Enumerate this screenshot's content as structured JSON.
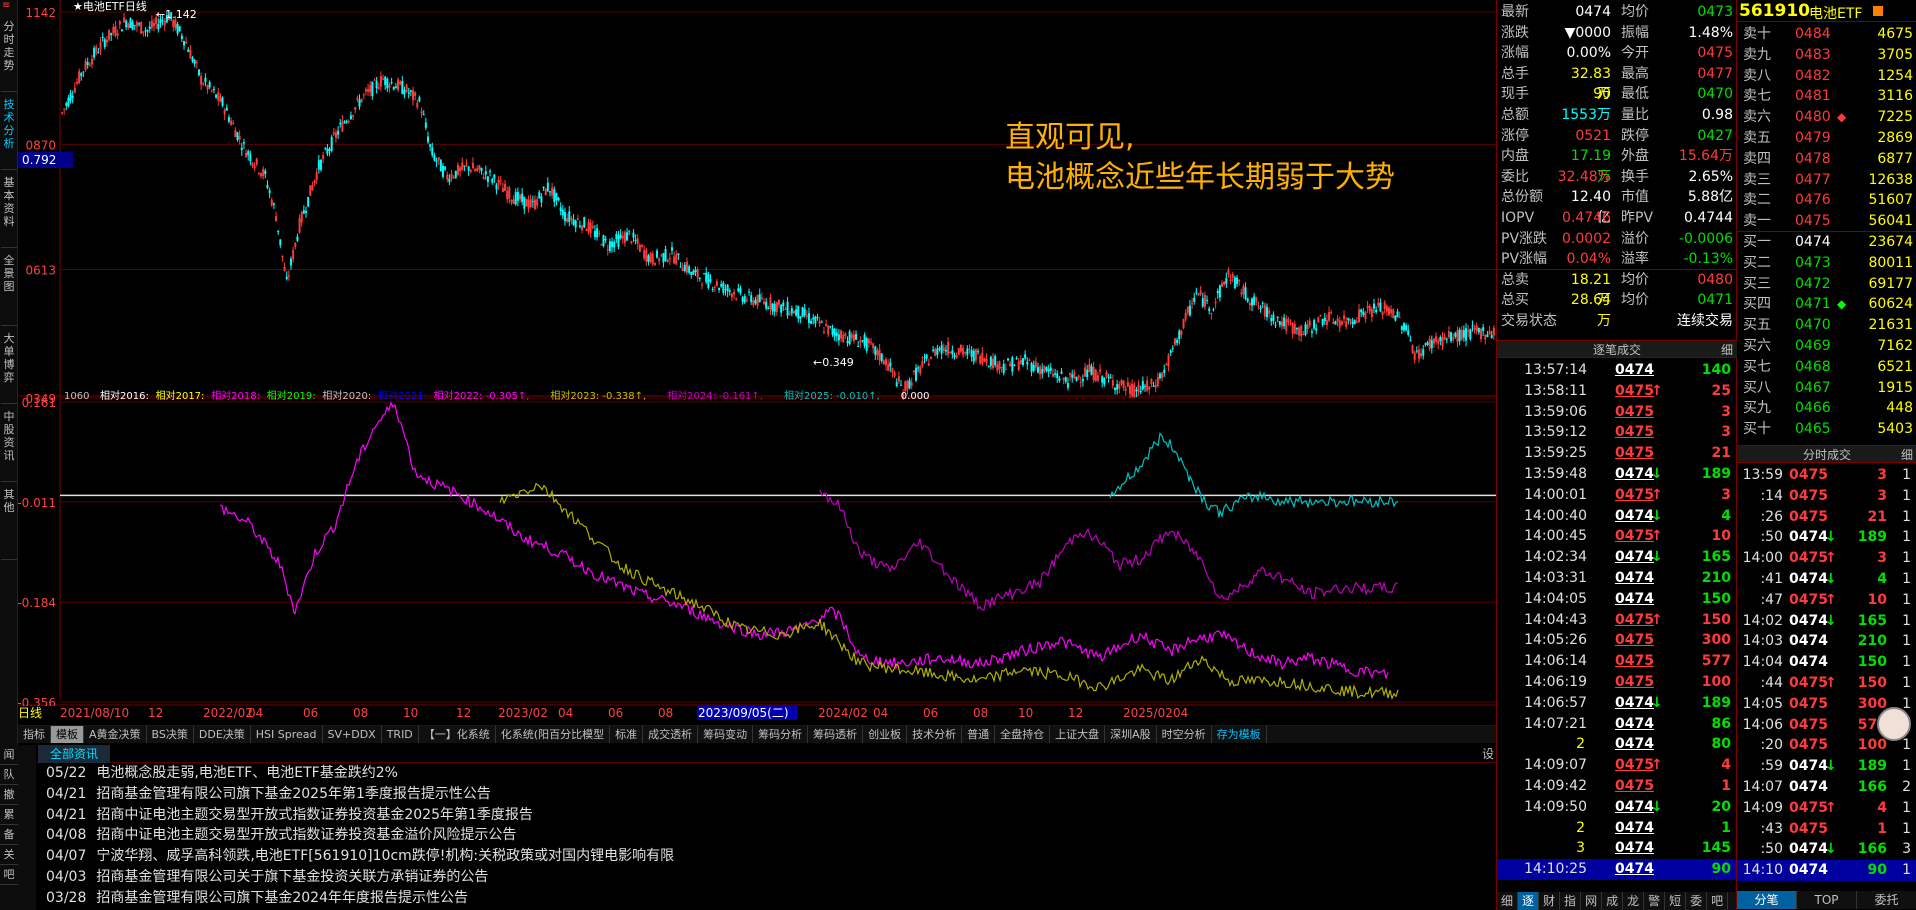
{
  "window": {
    "title": "电池ETF",
    "chart_label": "★电池ETF日线",
    "close_btn": "≡"
  },
  "left_tabs": [
    "分时走势",
    "技术分析",
    "基本资料",
    "全景图",
    "大单博弈",
    "中股资讯",
    "其他"
  ],
  "annotation": {
    "line1": "直观可见,",
    "line2": "电池概念近些年长期弱于大势"
  },
  "price_axis": {
    "labels": [
      "1142",
      "0870",
      "0613",
      "0349"
    ],
    "current": "0.792",
    "high_mark": "1.142",
    "low_mark": "0.349"
  },
  "indicator": {
    "label": "1060",
    "legend": [
      {
        "text": "相对2016:",
        "color": "#ffffff"
      },
      {
        "text": "相对2017:",
        "color": "#ffff00"
      },
      {
        "text": "相对2018:",
        "color": "#ff00ff"
      },
      {
        "text": "相对2019:",
        "color": "#00ff00"
      },
      {
        "text": "相对2020:",
        "color": "#c0c0c0"
      },
      {
        "text": "相对2021:",
        "color": "#0000ff"
      },
      {
        "text": "相对2022: -0.305↑,",
        "color": "#ff00ff"
      },
      {
        "text": "相对2023: -0.338↑,",
        "color": "#c0c000"
      },
      {
        "text": "相对2024: -0.161↑,",
        "color": "#c000c0"
      },
      {
        "text": "相对2025: -0.010↑,",
        "color": "#00c0c0"
      },
      {
        "text": "0.000",
        "color": "#ffffff"
      }
    ],
    "axis": [
      "0.161",
      "-0.011",
      "-0.184",
      "-0.356"
    ]
  },
  "time_axis": {
    "prefix": "日线",
    "labels": [
      "2021/08/10",
      "12",
      "2022/02",
      "04",
      "06",
      "08",
      "10",
      "12",
      "2023/02",
      "04",
      "06",
      "08",
      "2023/09/05(二)",
      "2024/02",
      "04",
      "06",
      "08",
      "10",
      "12",
      "2025/02",
      "04"
    ]
  },
  "toolbar": [
    "指标",
    "模板",
    "A黄金决策",
    "BS决策",
    "DDE决策",
    "HSI Spread",
    "SV+DDX",
    "TRID",
    "【一】化系统",
    "化系统(阳百分比模型",
    "标准",
    "成交透析",
    "筹码变动",
    "筹码分析",
    "筹码透析",
    "创业板",
    "技术分析",
    "普通",
    "全盘持仓",
    "上证大盘",
    "深圳A股",
    "时空分析",
    "存为模板"
  ],
  "news_header": {
    "label": "全部资讯",
    "right": "设"
  },
  "news_side": [
    "闻",
    "队",
    "撤",
    "累",
    "备",
    "关",
    "吧"
  ],
  "news": [
    {
      "date": "05/22",
      "text": "电池概念股走弱,电池ETF、电池ETF基金跌约2%"
    },
    {
      "date": "04/21",
      "text": "招商基金管理有限公司旗下基金2025年第1季度报告提示性公告"
    },
    {
      "date": "04/21",
      "text": "招商中证电池主题交易型开放式指数证券投资基金2025年第1季度报告"
    },
    {
      "date": "04/08",
      "text": "招商中证电池主题交易型开放式指数证券投资基金溢价风险提示公告"
    },
    {
      "date": "04/07",
      "text": "宁波华翔、威孚高科领跌,电池ETF[561910]10cm跌停!机构:关税政策或对国内锂电影响有限"
    },
    {
      "date": "04/03",
      "text": "招商基金管理有限公司关于旗下基金投资关联方承销证券的公告"
    },
    {
      "date": "03/28",
      "text": "招商基金管理有限公司旗下基金2024年年度报告提示性公告"
    }
  ],
  "quote": {
    "code": "561910",
    "name": "电池ETF",
    "rows": [
      {
        "l1": "最新",
        "v1": "0474",
        "c1": "wht",
        "l2": "均价",
        "v2": "0473",
        "c2": "grn"
      },
      {
        "l1": "涨跌",
        "v1": "▼0000",
        "c1": "wht",
        "l2": "振幅",
        "v2": "1.48%",
        "c2": "wht"
      },
      {
        "l1": "涨幅",
        "v1": "0.00%",
        "c1": "wht",
        "l2": "今开",
        "v2": "0475",
        "c2": "red"
      },
      {
        "l1": "总手",
        "v1": "32.83万",
        "c1": "yel",
        "l2": "最高",
        "v2": "0477",
        "c2": "red"
      },
      {
        "l1": "现手",
        "v1": "90",
        "c1": "yel",
        "l2": "最低",
        "v2": "0470",
        "c2": "grn"
      },
      {
        "l1": "总额",
        "v1": "1553万",
        "c1": "cyan",
        "l2": "量比",
        "v2": "0.98",
        "c2": "wht"
      },
      {
        "l1": "涨停",
        "v1": "0521",
        "c1": "red",
        "l2": "跌停",
        "v2": "0427",
        "c2": "grn"
      },
      {
        "l1": "内盘",
        "v1": "17.19万",
        "c1": "grn",
        "l2": "外盘",
        "v2": "15.64万",
        "c2": "red"
      },
      {
        "l1": "委比",
        "v1": "32.48%",
        "c1": "red",
        "l2": "换手",
        "v2": "2.65%",
        "c2": "wht"
      },
      {
        "l1": "总份额",
        "v1": "12.40亿",
        "c1": "wht",
        "l2": "市值",
        "v2": "5.88亿",
        "c2": "wht"
      },
      {
        "l1": "IOPV",
        "v1": "0.4746",
        "c1": "red",
        "l2": "昨PV",
        "v2": "0.4744",
        "c2": "wht"
      },
      {
        "l1": "PV涨跌",
        "v1": "0.0002",
        "c1": "red",
        "l2": "溢价",
        "v2": "-0.0006",
        "c2": "grn"
      },
      {
        "l1": "PV涨幅",
        "v1": "0.04%",
        "c1": "red",
        "l2": "溢率",
        "v2": "-0.13%",
        "c2": "grn"
      },
      {
        "l1": "总卖",
        "v1": "18.21万",
        "c1": "yel",
        "l2": "均价",
        "v2": "0480",
        "c2": "red"
      },
      {
        "l1": "总买",
        "v1": "28.64万",
        "c1": "yel",
        "l2": "均价",
        "v2": "0471",
        "c2": "grn"
      },
      {
        "l1": "交易状态",
        "v1": "",
        "c1": "wht",
        "l2": "",
        "v2": "连续交易",
        "c2": "wht"
      }
    ]
  },
  "orderbook": [
    {
      "label": "卖十",
      "price": "0484",
      "vol": "4675",
      "pc": "red",
      "mark": ""
    },
    {
      "label": "卖九",
      "price": "0483",
      "vol": "3705",
      "pc": "red",
      "mark": ""
    },
    {
      "label": "卖八",
      "price": "0482",
      "vol": "1254",
      "pc": "red",
      "mark": ""
    },
    {
      "label": "卖七",
      "price": "0481",
      "vol": "3116",
      "pc": "red",
      "mark": ""
    },
    {
      "label": "卖六",
      "price": "0480",
      "vol": "7225",
      "pc": "red",
      "mark": "◆"
    },
    {
      "label": "卖五",
      "price": "0479",
      "vol": "2869",
      "pc": "red",
      "mark": ""
    },
    {
      "label": "卖四",
      "price": "0478",
      "vol": "6877",
      "pc": "red",
      "mark": ""
    },
    {
      "label": "卖三",
      "price": "0477",
      "vol": "12638",
      "pc": "red",
      "mark": ""
    },
    {
      "label": "卖二",
      "price": "0476",
      "vol": "51607",
      "pc": "red",
      "mark": ""
    },
    {
      "label": "卖一",
      "price": "0475",
      "vol": "56041",
      "pc": "red",
      "mark": ""
    },
    {
      "label": "买一",
      "price": "0474",
      "vol": "23674",
      "pc": "wht",
      "mark": ""
    },
    {
      "label": "买二",
      "price": "0473",
      "vol": "80011",
      "pc": "grn",
      "mark": ""
    },
    {
      "label": "买三",
      "price": "0472",
      "vol": "69177",
      "pc": "grn",
      "mark": ""
    },
    {
      "label": "买四",
      "price": "0471",
      "vol": "60624",
      "pc": "grn",
      "mark": "◆"
    },
    {
      "label": "买五",
      "price": "0470",
      "vol": "21631",
      "pc": "grn",
      "mark": ""
    },
    {
      "label": "买六",
      "price": "0469",
      "vol": "7162",
      "pc": "grn",
      "mark": ""
    },
    {
      "label": "买七",
      "price": "0468",
      "vol": "6521",
      "pc": "grn",
      "mark": ""
    },
    {
      "label": "买八",
      "price": "0467",
      "vol": "1915",
      "pc": "grn",
      "mark": ""
    },
    {
      "label": "买九",
      "price": "0466",
      "vol": "448",
      "pc": "grn",
      "mark": ""
    },
    {
      "label": "买十",
      "price": "0465",
      "vol": "5403",
      "pc": "grn",
      "mark": ""
    }
  ],
  "ticks_header": {
    "title": "逐笔成交",
    "btn": "细"
  },
  "ticks": [
    {
      "t": "13:57:14",
      "p": "0474",
      "pc": "wht",
      "a": "",
      "v": "140",
      "vc": "grn"
    },
    {
      "t": "13:58:11",
      "p": "0475",
      "pc": "red",
      "a": "↑",
      "v": "25",
      "vc": "red"
    },
    {
      "t": "13:59:06",
      "p": "0475",
      "pc": "red",
      "a": "",
      "v": "3",
      "vc": "red"
    },
    {
      "t": "13:59:12",
      "p": "0475",
      "pc": "red",
      "a": "",
      "v": "3",
      "vc": "red"
    },
    {
      "t": "13:59:25",
      "p": "0475",
      "pc": "red",
      "a": "",
      "v": "21",
      "vc": "red"
    },
    {
      "t": "13:59:48",
      "p": "0474",
      "pc": "wht",
      "a": "↓",
      "v": "189",
      "vc": "grn"
    },
    {
      "t": "14:00:01",
      "p": "0475",
      "pc": "red",
      "a": "↑",
      "v": "3",
      "vc": "red"
    },
    {
      "t": "14:00:40",
      "p": "0474",
      "pc": "wht",
      "a": "↓",
      "v": "4",
      "vc": "grn"
    },
    {
      "t": "14:00:45",
      "p": "0475",
      "pc": "red",
      "a": "↑",
      "v": "10",
      "vc": "red"
    },
    {
      "t": "14:02:34",
      "p": "0474",
      "pc": "wht",
      "a": "↓",
      "v": "165",
      "vc": "grn"
    },
    {
      "t": "14:03:31",
      "p": "0474",
      "pc": "wht",
      "a": "",
      "v": "210",
      "vc": "grn"
    },
    {
      "t": "14:04:05",
      "p": "0474",
      "pc": "wht",
      "a": "",
      "v": "150",
      "vc": "grn"
    },
    {
      "t": "14:04:43",
      "p": "0475",
      "pc": "red",
      "a": "↑",
      "v": "150",
      "vc": "red"
    },
    {
      "t": "14:05:26",
      "p": "0475",
      "pc": "red",
      "a": "",
      "v": "300",
      "vc": "red"
    },
    {
      "t": "14:06:14",
      "p": "0475",
      "pc": "red",
      "a": "",
      "v": "577",
      "vc": "red"
    },
    {
      "t": "14:06:19",
      "p": "0475",
      "pc": "red",
      "a": "",
      "v": "100",
      "vc": "red"
    },
    {
      "t": "14:06:57",
      "p": "0474",
      "pc": "wht",
      "a": "↓",
      "v": "189",
      "vc": "grn"
    },
    {
      "t": "14:07:21",
      "p": "0474",
      "pc": "wht",
      "a": "",
      "v": "86",
      "vc": "grn"
    },
    {
      "t": "2",
      "p": "0474",
      "pc": "wht",
      "a": "",
      "v": "80",
      "vc": "grn"
    },
    {
      "t": "14:09:07",
      "p": "0475",
      "pc": "red",
      "a": "↑",
      "v": "4",
      "vc": "red"
    },
    {
      "t": "14:09:42",
      "p": "0475",
      "pc": "red",
      "a": "",
      "v": "1",
      "vc": "red"
    },
    {
      "t": "14:09:50",
      "p": "0474",
      "pc": "wht",
      "a": "↓",
      "v": "20",
      "vc": "grn"
    },
    {
      "t": "2",
      "p": "0474",
      "pc": "wht",
      "a": "",
      "v": "1",
      "vc": "grn"
    },
    {
      "t": "3",
      "p": "0474",
      "pc": "wht",
      "a": "",
      "v": "145",
      "vc": "grn"
    },
    {
      "t": "14:10:25",
      "p": "0474",
      "pc": "wht",
      "a": "",
      "v": "90",
      "vc": "grn"
    }
  ],
  "ticks_tabs": [
    "细",
    "逐",
    "财",
    "指",
    "网",
    "成",
    "龙",
    "警",
    "短",
    "委",
    "吧"
  ],
  "mticks_header": {
    "title": "分时成交",
    "btn": "细"
  },
  "mticks": [
    {
      "t": "13:59",
      "p": "0475",
      "pc": "red",
      "a": "",
      "v": "3",
      "vc": "red",
      "n": "1"
    },
    {
      "t": ":14",
      "p": "0475",
      "pc": "red",
      "a": "",
      "v": "3",
      "vc": "red",
      "n": "1"
    },
    {
      "t": ":26",
      "p": "0475",
      "pc": "red",
      "a": "",
      "v": "21",
      "vc": "red",
      "n": "1"
    },
    {
      "t": ":50",
      "p": "0474",
      "pc": "wht",
      "a": "↓",
      "v": "189",
      "vc": "grn",
      "n": "1"
    },
    {
      "t": "14:00",
      "p": "0475",
      "pc": "red",
      "a": "↑",
      "v": "3",
      "vc": "red",
      "n": "1"
    },
    {
      "t": ":41",
      "p": "0474",
      "pc": "wht",
      "a": "↓",
      "v": "4",
      "vc": "grn",
      "n": "1"
    },
    {
      "t": ":47",
      "p": "0475",
      "pc": "red",
      "a": "↑",
      "v": "10",
      "vc": "red",
      "n": "1"
    },
    {
      "t": "14:02",
      "p": "0474",
      "pc": "wht",
      "a": "↓",
      "v": "165",
      "vc": "grn",
      "n": "1"
    },
    {
      "t": "14:03",
      "p": "0474",
      "pc": "wht",
      "a": "",
      "v": "210",
      "vc": "grn",
      "n": "1"
    },
    {
      "t": "14:04",
      "p": "0474",
      "pc": "wht",
      "a": "",
      "v": "150",
      "vc": "grn",
      "n": "1"
    },
    {
      "t": ":44",
      "p": "0475",
      "pc": "red",
      "a": "↑",
      "v": "150",
      "vc": "red",
      "n": "1"
    },
    {
      "t": "14:05",
      "p": "0475",
      "pc": "red",
      "a": "",
      "v": "300",
      "vc": "red",
      "n": "1"
    },
    {
      "t": "14:06",
      "p": "0475",
      "pc": "red",
      "a": "",
      "v": "577",
      "vc": "red",
      "n": "1"
    },
    {
      "t": ":20",
      "p": "0475",
      "pc": "red",
      "a": "",
      "v": "100",
      "vc": "red",
      "n": "1"
    },
    {
      "t": ":59",
      "p": "0474",
      "pc": "wht",
      "a": "↓",
      "v": "189",
      "vc": "grn",
      "n": "1"
    },
    {
      "t": "14:07",
      "p": "0474",
      "pc": "wht",
      "a": "",
      "v": "166",
      "vc": "grn",
      "n": "2"
    },
    {
      "t": "14:09",
      "p": "0475",
      "pc": "red",
      "a": "↑",
      "v": "4",
      "vc": "red",
      "n": "1"
    },
    {
      "t": ":43",
      "p": "0475",
      "pc": "red",
      "a": "",
      "v": "1",
      "vc": "red",
      "n": "1"
    },
    {
      "t": ":50",
      "p": "0474",
      "pc": "wht",
      "a": "↓",
      "v": "166",
      "vc": "grn",
      "n": "3"
    },
    {
      "t": "14:10",
      "p": "0474",
      "pc": "wht",
      "a": "",
      "v": "90",
      "vc": "grn",
      "n": "1"
    }
  ],
  "mticks_tabs": [
    "分笔",
    "TOP",
    "委托"
  ],
  "colors": {
    "up": "#ff3a3a",
    "down": "#00ffff",
    "panel_border": "#7a0000",
    "annotation": "#ffb000"
  }
}
